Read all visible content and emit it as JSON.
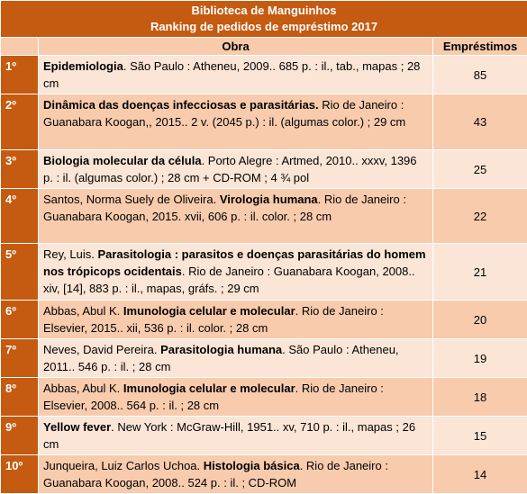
{
  "header": {
    "title": "Biblioteca de Manguinhos",
    "subtitle": "Ranking de pedidos de empréstimo 2017"
  },
  "table": {
    "columns": [
      "Obra",
      "Empréstimos"
    ],
    "rows": [
      {
        "rank": "1º",
        "work": [
          {
            "text": "Epidemiologia",
            "bold": true
          },
          {
            "text": ". São Paulo : Atheneu, 2009.. 685 p. : il., tab., mapas ; 28 cm",
            "bold": false
          }
        ],
        "loans": 85
      },
      {
        "rank": "2º",
        "work": [
          {
            "text": "Dinâmica das doenças infecciosas e parasitárias.",
            "bold": true
          },
          {
            "text": " Rio de Janeiro : Guanabara Koogan,, 2015.. 2 v. (2045 p.) : il. (algumas color.) ; 29 cm",
            "bold": false
          }
        ],
        "loans": 43
      },
      {
        "rank": "3º",
        "work": [
          {
            "text": "Biologia molecular da célula",
            "bold": true
          },
          {
            "text": ". Porto Alegre : Artmed, 2010.. xxxv, 1396 p. : il. (algumas color.) ; 28 cm + CD-ROM ; 4 ¾ pol",
            "bold": false
          }
        ],
        "loans": 25
      },
      {
        "rank": "4º",
        "work": [
          {
            "text": "Santos, Norma Suely de Oliveira. ",
            "bold": false
          },
          {
            "text": "Virologia humana",
            "bold": true
          },
          {
            "text": ". Rio de Janeiro : Guanabara Koogan, 2015. xvii, 606 p. : il. color. ; 28 cm",
            "bold": false
          }
        ],
        "loans": 22
      },
      {
        "rank": "5º",
        "work": [
          {
            "text": "Rey, Luis. ",
            "bold": false
          },
          {
            "text": "Parasitologia : parasitos e doenças parasitárias do homem nos trópicops ocidentais",
            "bold": true
          },
          {
            "text": ". Rio de Janeiro : Guanabara Koogan, 2008.. xiv, [14], 883 p. : il., mapas, gráfs. ; 29 cm",
            "bold": false
          }
        ],
        "loans": 21
      },
      {
        "rank": "6º",
        "work": [
          {
            "text": "Abbas, Abul K. ",
            "bold": false
          },
          {
            "text": "Imunologia celular e molecular",
            "bold": true
          },
          {
            "text": ". Rio de Janeiro : Elsevier, 2015.. xii, 536 p. : il. color. ; 28 cm",
            "bold": false
          }
        ],
        "loans": 20
      },
      {
        "rank": "7º",
        "work": [
          {
            "text": "Neves, David Pereira. ",
            "bold": false
          },
          {
            "text": "Parasitologia humana",
            "bold": true
          },
          {
            "text": ". São Paulo : Atheneu, 2011.. 546 p. : il. ; 28 cm",
            "bold": false
          }
        ],
        "loans": 19
      },
      {
        "rank": "8º",
        "work": [
          {
            "text": "Abbas, Abul K. ",
            "bold": false
          },
          {
            "text": "Imunologia celular e molecular",
            "bold": true
          },
          {
            "text": ". Rio de Janeiro : Elsevier, 2008.. 564 p. : il. ; 28 cm",
            "bold": false
          }
        ],
        "loans": 18
      },
      {
        "rank": "9º",
        "work": [
          {
            "text": "Yellow fever",
            "bold": true
          },
          {
            "text": ". New York : McGraw-Hill, 1951.. xv, 710 p. : il., mapas ; 26 cm",
            "bold": false
          }
        ],
        "loans": 15
      },
      {
        "rank": "10º",
        "work": [
          {
            "text": "Junqueira, Luiz Carlos Uchoa. ",
            "bold": false
          },
          {
            "text": "Histologia básica",
            "bold": true
          },
          {
            "text": ". Rio de Janeiro : Guanabara Koogan, 2008.. 524 p. : il. ; CD-ROM",
            "bold": false
          }
        ],
        "loans": 14
      }
    ]
  }
}
